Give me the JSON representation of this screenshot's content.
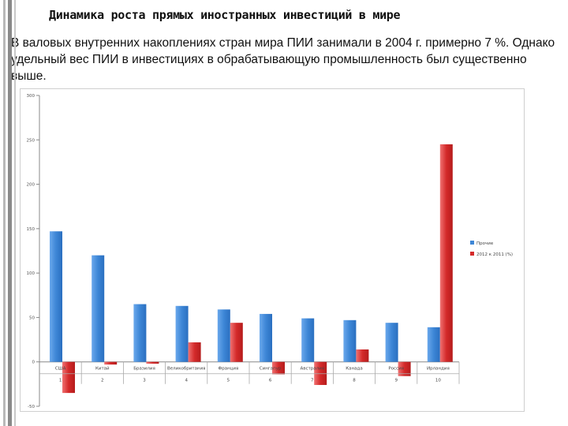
{
  "slide": {
    "title": "Динамика роста прямых иностранных инвестиций в мире",
    "text": "В валовых внутренних накоплениях стран мира ПИИ занимали в 2004 г. примерно 7 %. Однако удельный вес ПИИ в инвестициях в обрабатывающую промышленность был существенно выше."
  },
  "colors": {
    "blue": "#3d86d6",
    "red": "#d42a2a"
  },
  "chart_data": {
    "type": "bar",
    "categories": [
      "США",
      "Китай",
      "Бразилия",
      "Великобритания",
      "Франция",
      "Сингапур",
      "Австралия",
      "Канада",
      "Россия",
      "Ирландия"
    ],
    "rank_labels": [
      "1",
      "2",
      "3",
      "4",
      "5",
      "6",
      "7",
      "8",
      "9",
      "10"
    ],
    "series": [
      {
        "name": "Прочие",
        "values": [
          147,
          120,
          65,
          63,
          59,
          54,
          49,
          47,
          44,
          39
        ]
      },
      {
        "name": "2012 к 2011 (%)",
        "values": [
          -35,
          -3,
          -2,
          22,
          44,
          -14,
          -26,
          14,
          -16,
          245
        ]
      }
    ],
    "ylim": [
      -50,
      300
    ],
    "yticks": [
      -50,
      0,
      50,
      100,
      150,
      200,
      250,
      300
    ],
    "grid": false,
    "legend": "right"
  }
}
